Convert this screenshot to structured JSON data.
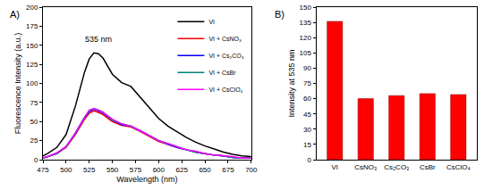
{
  "chart_data": [
    {
      "type": "line",
      "title": "A)",
      "x_label": "Wavelength (nm)",
      "y_label": "Fluorescence Intensity (a.u.)",
      "x": [
        475,
        480,
        490,
        500,
        510,
        520,
        525,
        530,
        535,
        540,
        550,
        560,
        570,
        580,
        590,
        600,
        610,
        620,
        630,
        640,
        650,
        660,
        670,
        680,
        690,
        700
      ],
      "series": [
        {
          "name": "VI",
          "color": "#000000",
          "values": [
            5,
            8,
            16,
            33,
            70,
            115,
            132,
            140,
            139,
            133,
            112,
            101,
            96,
            82,
            67,
            54,
            44,
            36,
            29,
            23,
            18,
            14,
            10,
            7,
            5,
            4
          ]
        },
        {
          "name": "VI + CsNO₃",
          "color": "#ff0000",
          "values": [
            2,
            4,
            8,
            16,
            33,
            53,
            61,
            64,
            62,
            59,
            50,
            45,
            43,
            37,
            30,
            24,
            20,
            16,
            13,
            10,
            8,
            6,
            5,
            3,
            2,
            2
          ]
        },
        {
          "name": "VI + Cs₂CO₃",
          "color": "#0000ff",
          "values": [
            2,
            4,
            8,
            17,
            34,
            55,
            63,
            66,
            64,
            61,
            52,
            46,
            44,
            38,
            31,
            25,
            20,
            16,
            13,
            10,
            8,
            6,
            5,
            3,
            2,
            2
          ]
        },
        {
          "name": "VI + CsBr",
          "color": "#008080",
          "values": [
            2,
            4,
            8,
            17,
            35,
            56,
            64,
            67,
            65,
            62,
            52,
            47,
            44,
            38,
            31,
            25,
            21,
            17,
            13,
            10,
            8,
            6,
            5,
            3,
            2,
            2
          ]
        },
        {
          "name": "VI + CsClO₄",
          "color": "#ff00ff",
          "values": [
            2,
            4,
            9,
            17,
            35,
            56,
            65,
            67,
            65,
            62,
            53,
            47,
            44,
            38,
            31,
            25,
            21,
            17,
            13,
            11,
            8,
            6,
            5,
            4,
            2,
            2
          ]
        }
      ],
      "xlim": [
        475,
        700
      ],
      "xticks": [
        475,
        500,
        525,
        550,
        575,
        600,
        625,
        650,
        675,
        700
      ],
      "ylim": [
        0,
        200
      ],
      "yticks": [
        0,
        25,
        50,
        75,
        100,
        125,
        150,
        175,
        200
      ],
      "annotations": [
        {
          "text": "535 nm",
          "x": 535,
          "y": 158
        }
      ],
      "legend": "top right",
      "grid": false
    },
    {
      "type": "bar",
      "title": "B)",
      "y_label": "Intensity at 535 nm",
      "categories": [
        "VI",
        "CsNO₃",
        "Cs₂CO₃",
        "CsBr",
        "CsClO₄"
      ],
      "values": [
        136,
        60,
        63,
        65,
        64
      ],
      "color": "#ff0000",
      "ylim": [
        0,
        150
      ],
      "yticks": [
        0,
        15,
        30,
        45,
        60,
        75,
        90,
        105,
        120,
        135,
        150
      ],
      "grid": false
    }
  ]
}
